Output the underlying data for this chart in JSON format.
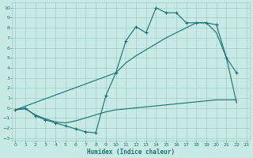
{
  "xlabel": "Humidex (Indice chaleur)",
  "xlim": [
    -0.3,
    23.3
  ],
  "ylim": [
    -3.3,
    10.5
  ],
  "xticks": [
    0,
    1,
    2,
    3,
    4,
    5,
    6,
    7,
    8,
    9,
    10,
    11,
    12,
    13,
    14,
    15,
    16,
    17,
    18,
    19,
    20,
    21,
    22,
    23
  ],
  "yticks": [
    -3,
    -2,
    -1,
    0,
    1,
    2,
    3,
    4,
    5,
    6,
    7,
    8,
    9,
    10
  ],
  "bg_color": "#c8eae5",
  "grid_color": "#a0cccc",
  "line_color": "#1a7070",
  "curve_x": [
    0,
    1,
    2,
    3,
    4,
    5,
    6,
    7,
    8,
    9,
    10,
    11,
    12,
    13,
    14,
    15,
    16,
    17,
    18,
    19,
    20,
    21,
    22
  ],
  "curve_y": [
    -0.2,
    0.0,
    -0.8,
    -1.2,
    -1.5,
    -1.8,
    -2.1,
    -2.4,
    -2.5,
    1.2,
    3.5,
    6.7,
    8.1,
    7.5,
    10.0,
    9.5,
    9.5,
    8.5,
    8.5,
    8.5,
    8.3,
    5.0,
    3.5
  ],
  "line_upper_x": [
    0,
    10,
    11,
    12,
    13,
    14,
    15,
    16,
    17,
    18,
    19,
    20,
    21,
    22
  ],
  "line_upper_y": [
    -0.2,
    3.5,
    4.5,
    5.2,
    5.8,
    6.4,
    7.0,
    7.5,
    8.0,
    8.5,
    8.5,
    7.5,
    5.0,
    0.5
  ],
  "line_lower_x": [
    0,
    1,
    2,
    3,
    4,
    5,
    6,
    7,
    8,
    9,
    10,
    11,
    12,
    13,
    14,
    15,
    16,
    17,
    18,
    19,
    20,
    21,
    22
  ],
  "line_lower_y": [
    -0.2,
    -0.1,
    -0.7,
    -1.1,
    -1.4,
    -1.5,
    -1.3,
    -1.0,
    -0.7,
    -0.4,
    -0.2,
    -0.1,
    0.0,
    0.1,
    0.2,
    0.3,
    0.4,
    0.5,
    0.6,
    0.7,
    0.8,
    0.8,
    0.8
  ]
}
